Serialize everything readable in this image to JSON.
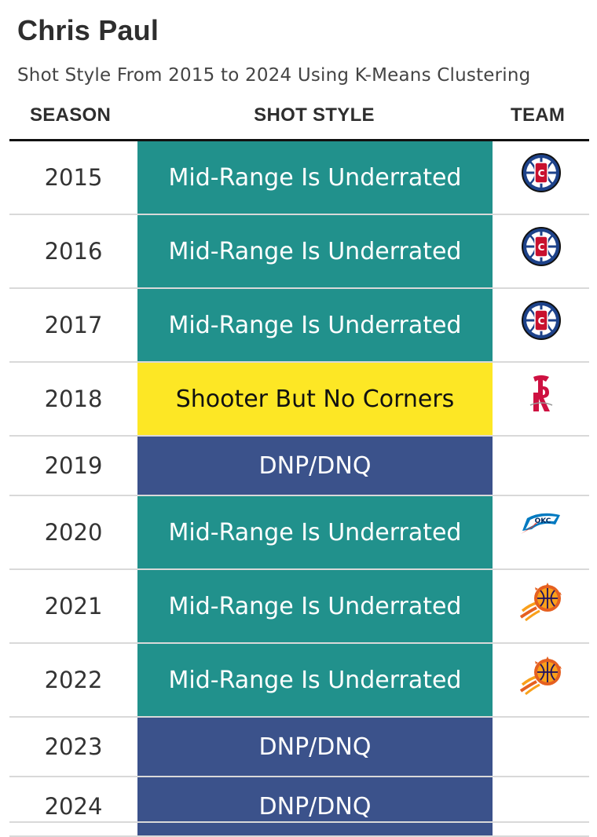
{
  "header": {
    "title": "Chris Paul",
    "subtitle": "Shot Style From 2015 to 2024 Using K-Means Clustering"
  },
  "columns": {
    "season": "SEASON",
    "shot_style": "SHOT STYLE",
    "team": "TEAM"
  },
  "styles": {
    "Mid-Range Is Underrated": {
      "bg": "#21918c",
      "fg": "#ffffff"
    },
    "Shooter But No Corners": {
      "bg": "#fde725",
      "fg": "#111111"
    },
    "DNP/DNQ": {
      "bg": "#3b528b",
      "fg": "#ffffff"
    }
  },
  "rows": [
    {
      "season": "2015",
      "shot_style": "Mid-Range Is Underrated",
      "team_logo": "clippers-logo-icon"
    },
    {
      "season": "2016",
      "shot_style": "Mid-Range Is Underrated",
      "team_logo": "clippers-logo-icon"
    },
    {
      "season": "2017",
      "shot_style": "Mid-Range Is Underrated",
      "team_logo": "clippers-logo-icon"
    },
    {
      "season": "2018",
      "shot_style": "Shooter But No Corners",
      "team_logo": "rockets-logo-icon"
    },
    {
      "season": "2019",
      "shot_style": "DNP/DNQ",
      "team_logo": ""
    },
    {
      "season": "2020",
      "shot_style": "Mid-Range Is Underrated",
      "team_logo": "thunder-logo-icon"
    },
    {
      "season": "2021",
      "shot_style": "Mid-Range Is Underrated",
      "team_logo": "suns-logo-icon"
    },
    {
      "season": "2022",
      "shot_style": "Mid-Range Is Underrated",
      "team_logo": "suns-logo-icon"
    },
    {
      "season": "2023",
      "shot_style": "DNP/DNQ",
      "team_logo": ""
    },
    {
      "season": "2024",
      "shot_style": "DNP/DNQ",
      "team_logo": ""
    }
  ]
}
